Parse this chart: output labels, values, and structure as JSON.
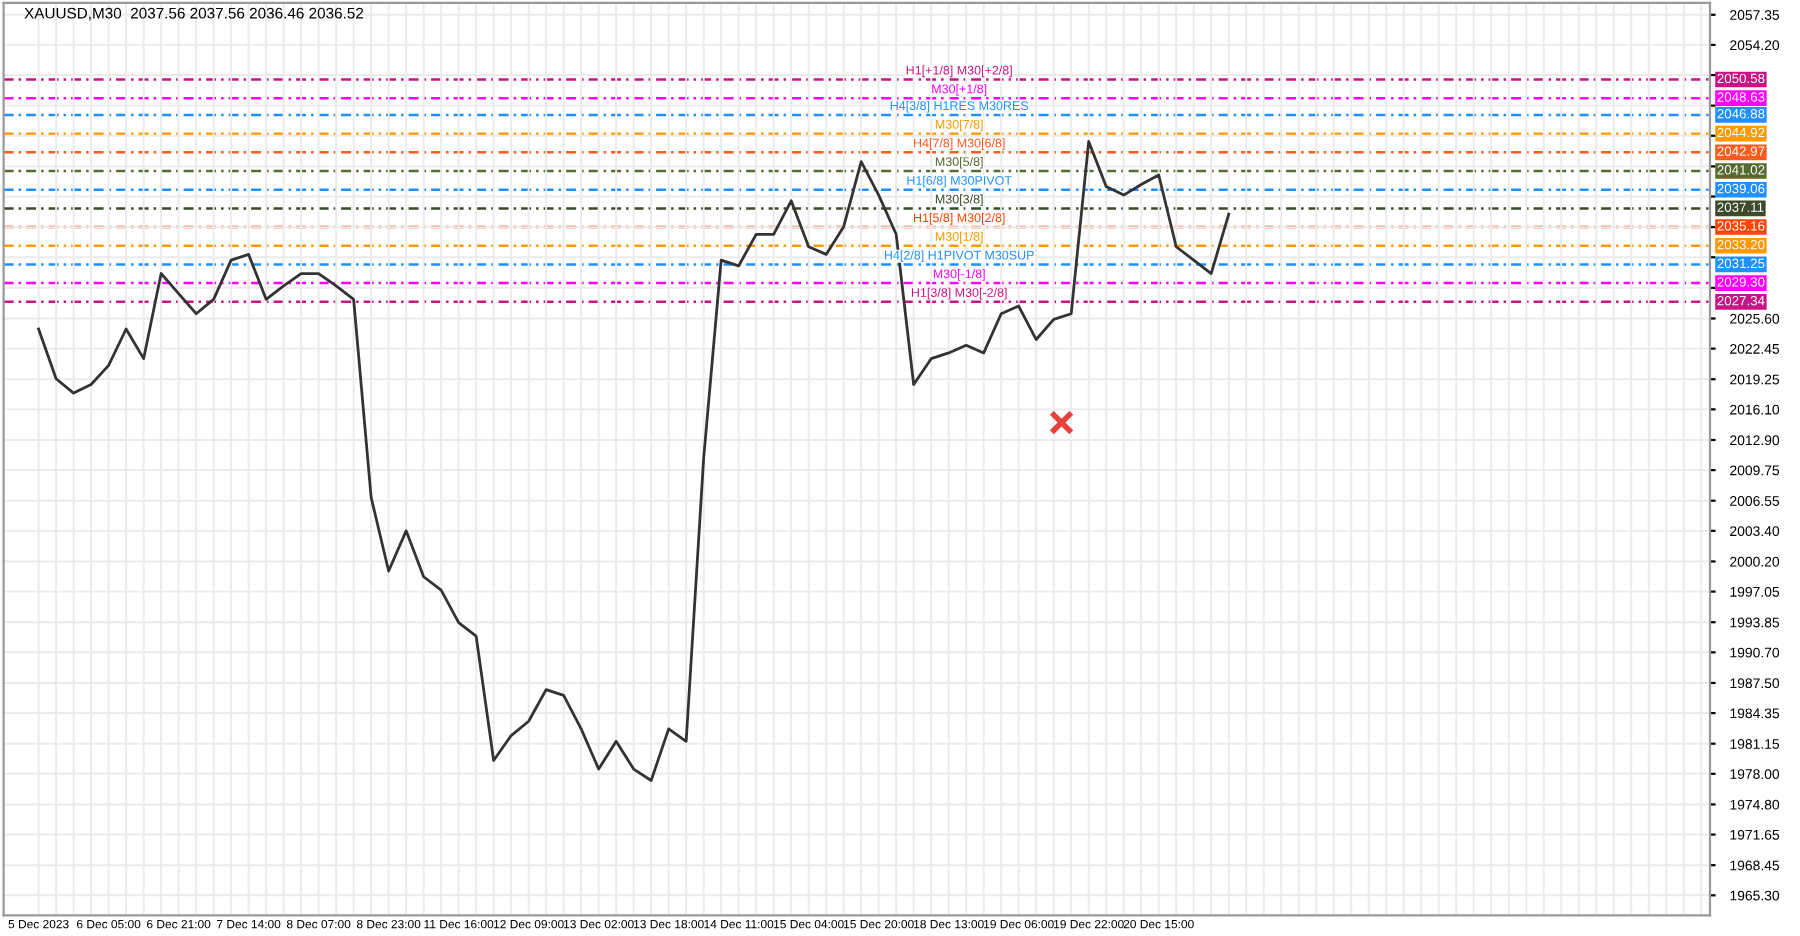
{
  "chart_data": {
    "type": "line",
    "title": "XAUUSD,M30  2037.56 2037.56 2036.46 2036.52",
    "categories": [
      "5 Dec 2023",
      null,
      null,
      null,
      "6 Dec 05:00",
      null,
      null,
      null,
      "6 Dec 21:00",
      null,
      null,
      null,
      "7 Dec 14:00",
      null,
      null,
      null,
      "8 Dec 07:00",
      null,
      null,
      null,
      "8 Dec 23:00",
      null,
      null,
      null,
      "11 Dec 16:00",
      null,
      null,
      null,
      "12 Dec 09:00",
      null,
      null,
      null,
      "13 Dec 02:00",
      null,
      null,
      null,
      "13 Dec 18:00",
      null,
      null,
      null,
      "14 Dec 11:00",
      null,
      null,
      null,
      "15 Dec 04:00",
      null,
      null,
      null,
      "15 Dec 20:00",
      null,
      null,
      null,
      "18 Dec 13:00",
      null,
      null,
      null,
      "19 Dec 06:00",
      null,
      null,
      null,
      "19 Dec 22:00",
      null,
      null,
      null,
      "20 Dec 15:00",
      null,
      null,
      null,
      null,
      null,
      null,
      null,
      null,
      null,
      null,
      null,
      null,
      null,
      null,
      null,
      null,
      null,
      null,
      null,
      null,
      null,
      null,
      null,
      null,
      null,
      null,
      null,
      null,
      null,
      null,
      null
    ],
    "series": [
      {
        "color": "#333333",
        "values": [
          2024.5,
          2019.3,
          2017.8,
          2018.7,
          2020.7,
          2024.5,
          2021.4,
          2030.3,
          2028.2,
          2026.1,
          2027.6,
          2031.7,
          2032.3,
          2027.6,
          2029.0,
          2030.3,
          2030.3,
          2029.0,
          2027.6,
          2006.9,
          1999.2,
          2003.4,
          1998.6,
          1997.2,
          1993.8,
          1992.4,
          1979.4,
          1982.0,
          1983.5,
          1986.8,
          1986.2,
          1982.7,
          1978.5,
          1981.4,
          1978.5,
          1977.3,
          1982.7,
          1981.4,
          2011.0,
          2031.7,
          2031.1,
          2034.4,
          2034.4,
          2037.9,
          2033.1,
          2032.3,
          2035.2,
          2042.0,
          2038.5,
          2034.4,
          2018.7,
          2021.4,
          2022.0,
          2022.8,
          2022.0,
          2026.1,
          2026.9,
          2023.4,
          2025.5,
          2026.1,
          2044.1,
          2039.4,
          2038.5,
          2039.6,
          2040.6,
          2033.1,
          2031.7,
          2030.3,
          2036.5,
          null,
          null,
          null,
          null,
          null,
          null,
          null,
          null,
          null,
          null,
          null,
          null,
          null,
          null,
          null,
          null,
          null,
          null,
          null,
          null,
          null,
          null,
          null,
          null,
          null,
          null,
          null
        ]
      }
    ],
    "ylim": [
      1963.2,
      2058.6
    ],
    "yticks": [
      2057.35,
      {
        "value": 2054.2,
        "label": "2054.20"
      },
      {
        "value": 2051.05,
        "label": null
      },
      {
        "value": 2047.85,
        "label": null
      },
      {
        "value": 2044.7,
        "label": null
      },
      {
        "value": 2041.5,
        "label": null
      },
      {
        "value": 2038.35,
        "label": null
      },
      {
        "value": 2035.15,
        "label": null
      },
      {
        "value": 2032.0,
        "label": null
      },
      {
        "value": 2028.8,
        "label": null
      },
      {
        "value": 2025.6,
        "label": "2025.60"
      },
      2022.45,
      2019.25,
      {
        "value": 2016.1,
        "label": "2016.10"
      },
      {
        "value": 2012.9,
        "label": "2012.90"
      },
      2009.75,
      2006.55,
      {
        "value": 2003.4,
        "label": "2003.40"
      },
      {
        "value": 2000.2,
        "label": "2000.20"
      },
      1997.05,
      1993.85,
      {
        "value": 1990.7,
        "label": "1990.70"
      },
      {
        "value": 1987.5,
        "label": "1987.50"
      },
      1984.35,
      1981.15,
      {
        "value": 1978.0,
        "label": "1978.00"
      },
      {
        "value": 1974.8,
        "label": "1974.80"
      },
      1971.65,
      1968.45,
      {
        "value": 1965.3,
        "label": "1965.30"
      }
    ],
    "ref_lines": [
      {
        "axis": "y",
        "value": 2050.58,
        "label": "H1[+1/8] M30[+2/8]",
        "color": "#c71585",
        "line_style": "dashed"
      },
      {
        "axis": "y",
        "value": 2048.63,
        "label": "M30[+1/8]",
        "color": "#ff00ff",
        "line_style": "dashed"
      },
      {
        "axis": "y",
        "value": 2046.88,
        "label": "H4[3/8] H1RES M30RES",
        "color": "#1e90ff",
        "line_style": "dashed"
      },
      {
        "axis": "y",
        "value": 2044.92,
        "label": "M30[7/8]",
        "color": "#ff9900",
        "line_style": "dashed"
      },
      {
        "axis": "y",
        "value": 2042.97,
        "label": "H4[7/8] M30[6/8]",
        "color": "#ff5a1f",
        "line_style": "dashed"
      },
      {
        "axis": "y",
        "value": 2041.02,
        "label": "M30[5/8]",
        "color": "#556b2f",
        "line_style": "dashed"
      },
      {
        "axis": "y",
        "value": 2039.06,
        "label": "H1[6/8] M30PIVOT",
        "color": "#1e90ff",
        "line_style": "dashed"
      },
      {
        "axis": "y",
        "value": 2037.11,
        "label": "M30[3/8]",
        "color": "#3b4a2b",
        "line_style": "dashed"
      },
      {
        "axis": "y",
        "value": 2035.16,
        "label": "H1[5/8] M30[2/8]",
        "color": "#ff4500",
        "line_style": "dashed"
      },
      {
        "axis": "y",
        "value": 2033.2,
        "label": "M30[1/8]",
        "color": "#ff9900",
        "line_style": "dashed"
      },
      {
        "axis": "y",
        "value": 2031.25,
        "label": "H4[2/8] H1PIVOT M30SUP",
        "color": "#1e90ff",
        "line_style": "dashed"
      },
      {
        "axis": "y",
        "value": 2029.3,
        "label": "M30[-1/8]",
        "color": "#ff00ff",
        "line_style": "dashed"
      },
      {
        "axis": "y",
        "value": 2027.34,
        "label": "H1[3/8] M30[-2/8]",
        "color": "#c71585",
        "line_style": "dashed"
      }
    ],
    "annotations": [
      {
        "text": "2050.58",
        "y": 2050.58
      },
      {
        "text": "2048.63",
        "y": 2048.63
      },
      {
        "text": "2046.88",
        "y": 2046.88
      },
      {
        "text": "2044.92",
        "y": 2044.92
      },
      {
        "text": "2042.97",
        "y": 2042.97
      },
      {
        "text": "2041.02",
        "y": 2041.02
      },
      {
        "text": "2039.06",
        "y": 2039.06
      },
      {
        "text": "2037.11",
        "y": 2037.11
      },
      {
        "text": "2035.16",
        "y": 2035.16
      },
      {
        "text": "2033.20",
        "y": 2033.2
      },
      {
        "text": "2031.25",
        "y": 2031.25
      },
      {
        "text": "2029.30",
        "y": 2029.3
      },
      {
        "text": "2027.34",
        "y": 2027.34
      }
    ],
    "grid": true,
    "legend": false,
    "marker": "none",
    "line_style": "solid"
  }
}
